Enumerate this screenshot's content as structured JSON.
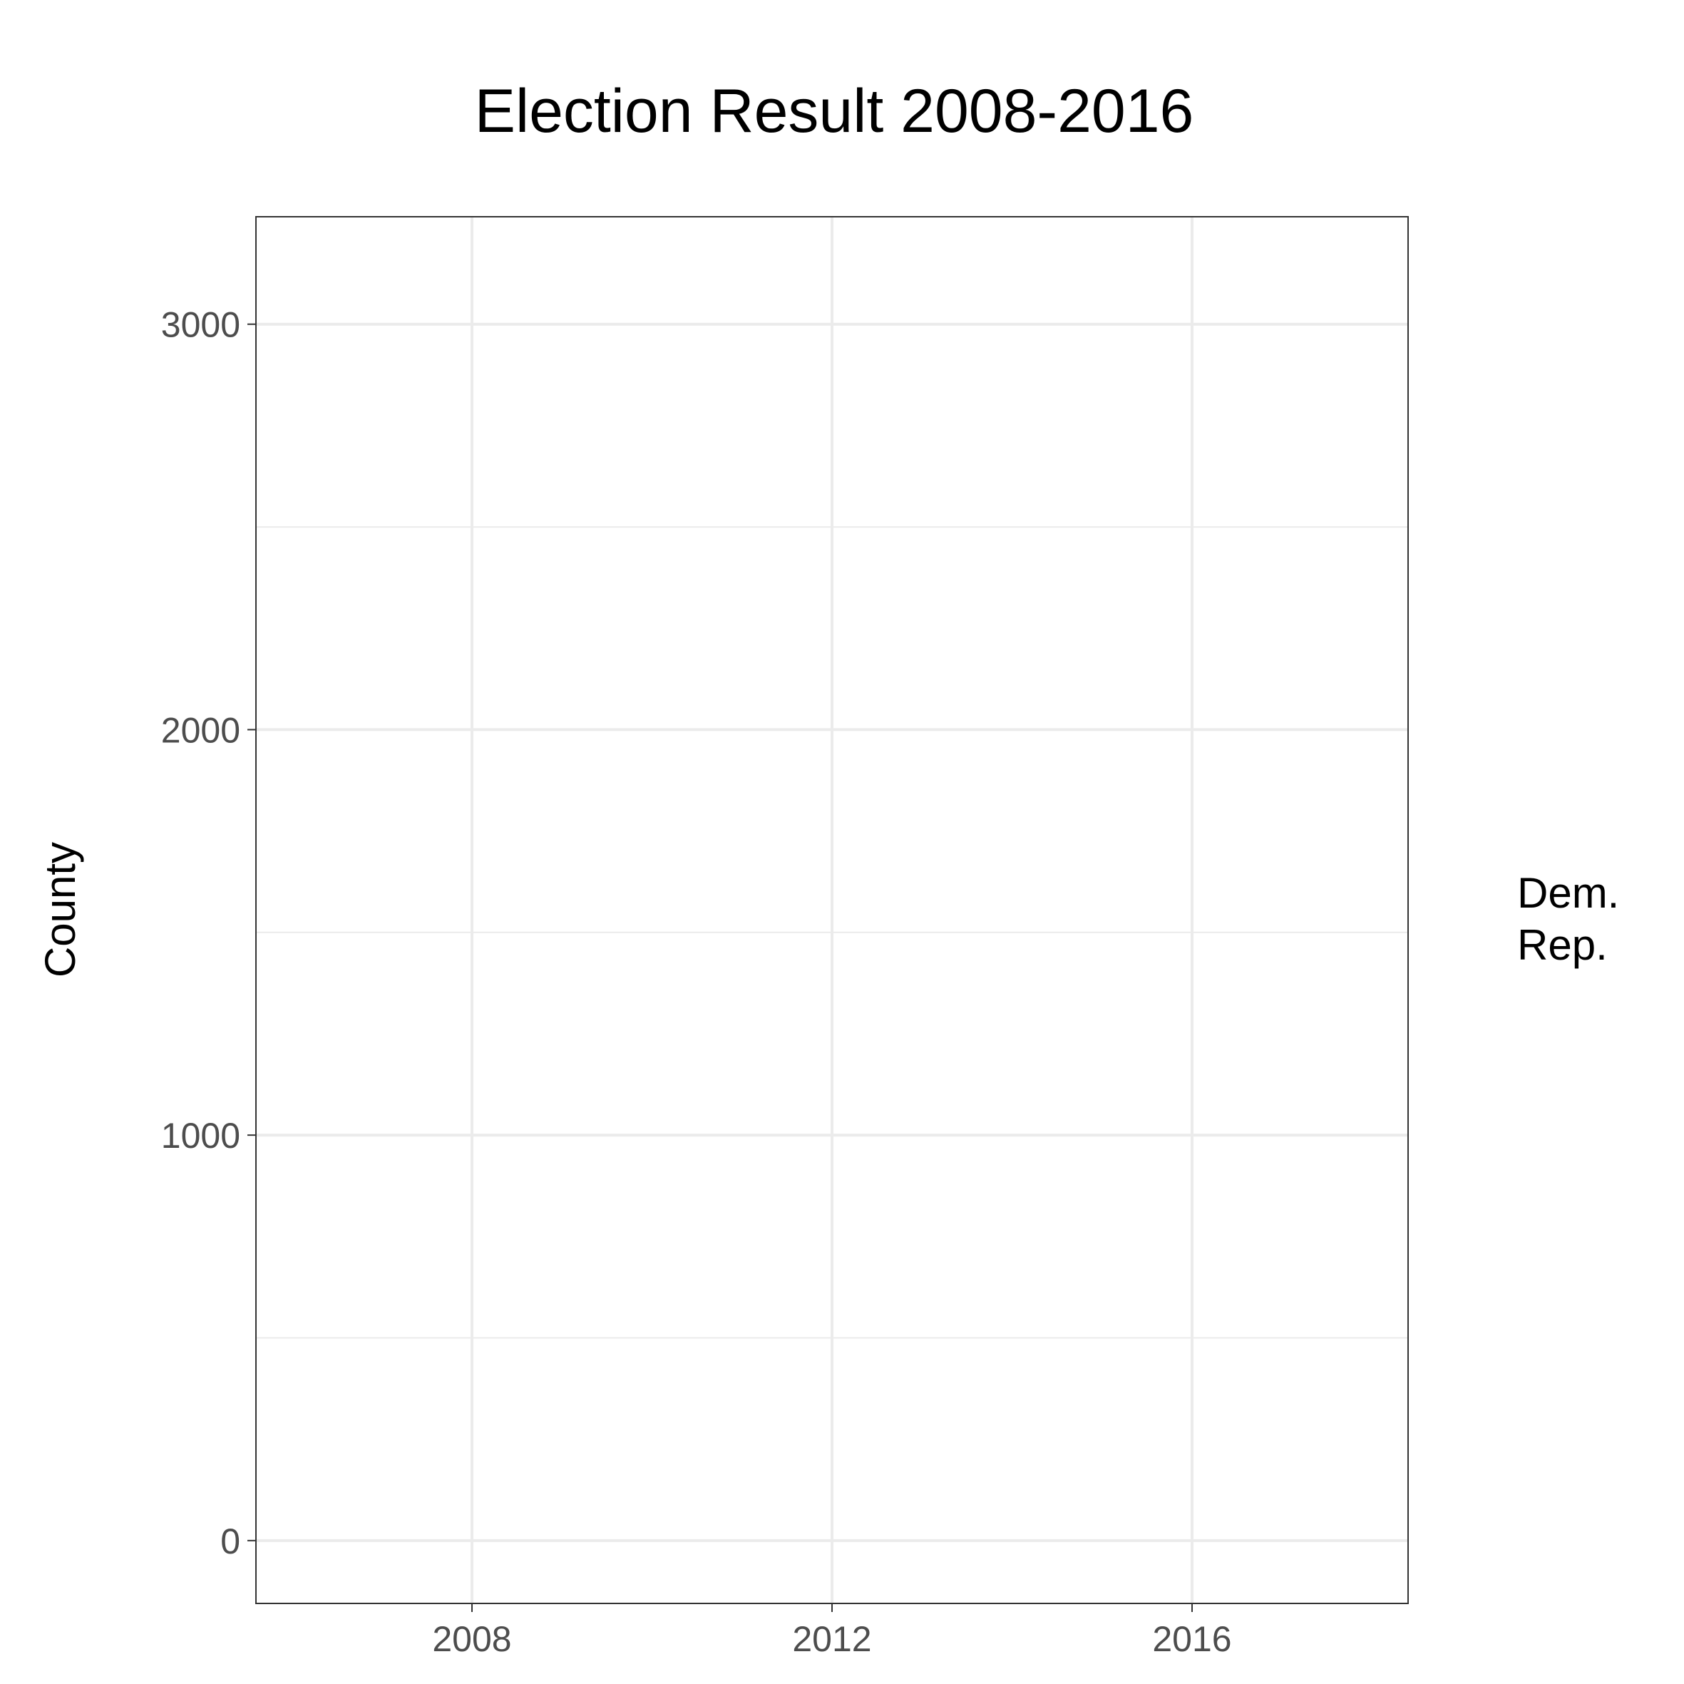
{
  "chart_data": {
    "type": "line",
    "title": "Election Result 2008-2016",
    "xlabel": "",
    "ylabel": "County",
    "x_ticks": [
      2008,
      2012,
      2016
    ],
    "y_ticks": [
      0,
      1000,
      2000,
      3000
    ],
    "xlim": [
      2005.6,
      2018.4
    ],
    "ylim": [
      -155,
      3265
    ],
    "grid": true,
    "legend": {
      "placement": "right",
      "entries": [
        "Dem.",
        "Rep."
      ]
    },
    "series": [
      {
        "name": "Dem.",
        "x": [],
        "y": []
      },
      {
        "name": "Rep.",
        "x": [],
        "y": []
      }
    ],
    "colors": {
      "grid_major": "#ebebeb",
      "grid_minor": "#ebebeb",
      "panel_border": "#333333",
      "tick_label": "#4d4d4d"
    }
  }
}
